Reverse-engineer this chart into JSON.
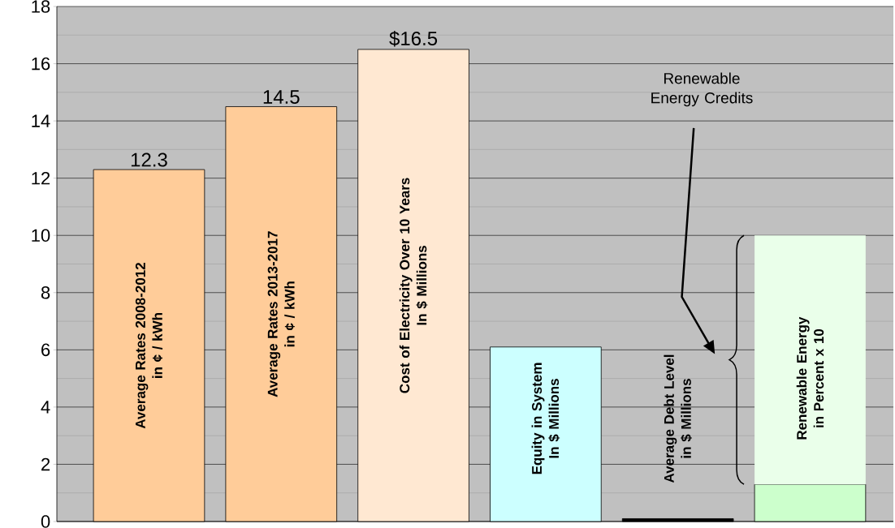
{
  "chart_data": {
    "type": "bar",
    "stacked": true,
    "categories": [
      "Average Rates 2008-2012\nin ¢ / kWh",
      "Average Rates 2013-2017\nin ¢ / kWh",
      "Cost of Electricity Over 10 Years\nIn $ Millions",
      "Equity in System\nIn $ Millions",
      "Average Debt Level\nin $ Millions",
      "Renewable Energy\nin Percent x 10"
    ],
    "series": [
      {
        "values": [
          12.3,
          14.5,
          16.5,
          6.1,
          0.1,
          1.3
        ],
        "colors": [
          "#ffcc99",
          "#ffcc99",
          "#ffe8d2",
          "#ccffff",
          "#000000",
          "#ccffcc"
        ],
        "value_labels": [
          "12.3",
          "14.5",
          "$16.5",
          null,
          null,
          null
        ]
      },
      {
        "values": [
          null,
          null,
          null,
          null,
          null,
          8.7
        ],
        "colors": [
          null,
          null,
          null,
          null,
          null,
          "#eaffea"
        ]
      }
    ],
    "ylim": [
      0,
      18
    ],
    "yticks": [
      0,
      2,
      4,
      6,
      8,
      10,
      12,
      14,
      16,
      18
    ],
    "grid": "y",
    "annotations": [
      "Renewable\nEnergy Credits"
    ]
  }
}
